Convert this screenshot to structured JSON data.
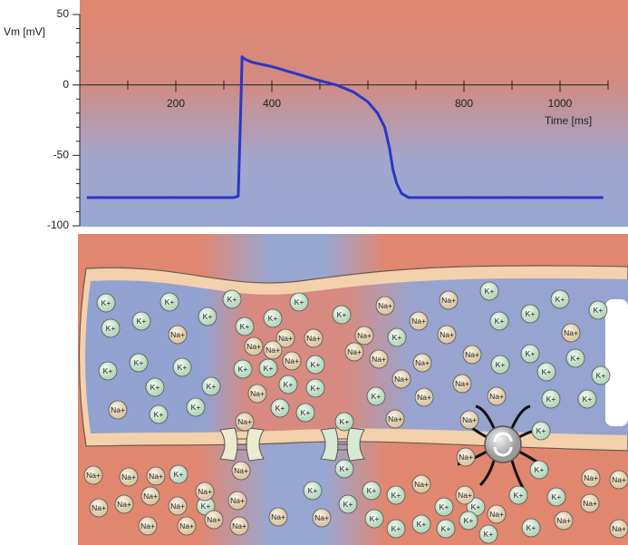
{
  "chart_data": {
    "type": "line",
    "y_label": "Vm [mV]",
    "x_label": "Time [ms]",
    "x": [
      15,
      320,
      330,
      335,
      338,
      345,
      360,
      400,
      450,
      500,
      534,
      570,
      600,
      620,
      635,
      645,
      652,
      660,
      670,
      685,
      720,
      1090
    ],
    "series": [
      {
        "color": "#2b36c8",
        "values": [
          -80,
          -80,
          -79,
          -20,
          20,
          18,
          16,
          13,
          8,
          3,
          0,
          -5,
          -12,
          -20,
          -30,
          -45,
          -60,
          -70,
          -77,
          -80,
          -80,
          -80
        ]
      }
    ],
    "xlim": [
      0,
      1100
    ],
    "xticks": [
      200,
      400,
      800,
      1000
    ],
    "x_minor_ticks": [
      100,
      300,
      500,
      600,
      700,
      900,
      1100
    ],
    "ylim": [
      -100,
      50
    ],
    "yticks": [
      50,
      0,
      -50,
      -100
    ],
    "y_minor_ticks": [
      40,
      30,
      20,
      10,
      -10,
      -20,
      -30,
      -40,
      -60,
      -70,
      -80,
      -90
    ]
  },
  "ions": [
    "K+",
    "K+",
    "K+",
    "K+",
    "K+",
    "K+",
    "K+",
    "K+",
    "K+",
    "K+",
    "K+",
    "K+",
    "K+",
    "K+",
    "K+",
    "K+",
    "K+",
    "K+",
    "K+",
    "K+",
    "K+",
    "K+",
    "K+",
    "K+",
    "K+",
    "K+",
    "K+",
    "K+",
    "K+",
    "K+",
    "K+",
    "K+",
    "K+",
    "K+",
    "K+",
    "K+",
    "K+",
    "K+",
    "Na+",
    "Na+",
    "Na+",
    "Na+",
    "Na+",
    "Na+",
    "Na+",
    "Na+",
    "Na+",
    "Na+",
    "Na+",
    "Na+",
    "Na+",
    "Na+",
    "Na+",
    "Na+",
    "Na+",
    "Na+",
    "Na+",
    "Na+",
    "Na+",
    "Na+",
    "Na+",
    "Na+",
    "Na+",
    "K+",
    "K+",
    "K+",
    "K+",
    "K+",
    "K+",
    "K+",
    "K+",
    "K+",
    "K+",
    "K+",
    "K+",
    "K+",
    "K+",
    "K+",
    "K+",
    "K+",
    "K+",
    "K+",
    "K+",
    "K+",
    "Na+",
    "Na+",
    "Na+",
    "Na+",
    "Na+",
    "Na+",
    "Na+",
    "Na+",
    "Na+",
    "Na+",
    "Na+",
    "Na+",
    "Na+",
    "Na+",
    "Na+",
    "Na+",
    "Na+",
    "Na+",
    "Na+",
    "Na+",
    "Na+",
    "Na+",
    "Na+",
    "Na+",
    "Na+"
  ]
}
